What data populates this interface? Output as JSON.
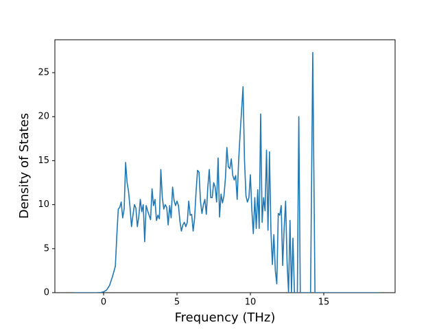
{
  "chart_data": {
    "type": "line",
    "xlabel": "Frequency (THz)",
    "ylabel": "Density of States",
    "xlim": [
      -3.32,
      19.86
    ],
    "ylim": [
      0,
      28.74
    ],
    "xticks": [
      0,
      5,
      10,
      15
    ],
    "yticks": [
      0,
      5,
      10,
      15,
      20,
      25
    ],
    "color": "#1f77b4",
    "x": [
      -2,
      -1.5,
      -1,
      -0.5,
      -0.2,
      0,
      0.2,
      0.4,
      0.6,
      0.8,
      0.9,
      1.0,
      1.1,
      1.2,
      1.3,
      1.4,
      1.5,
      1.6,
      1.7,
      1.8,
      1.9,
      2.0,
      2.1,
      2.2,
      2.3,
      2.4,
      2.5,
      2.6,
      2.7,
      2.8,
      2.9,
      3.0,
      3.1,
      3.2,
      3.3,
      3.4,
      3.5,
      3.6,
      3.7,
      3.8,
      3.9,
      4.0,
      4.1,
      4.2,
      4.3,
      4.4,
      4.5,
      4.6,
      4.7,
      4.8,
      4.9,
      5.0,
      5.1,
      5.2,
      5.3,
      5.4,
      5.5,
      5.6,
      5.7,
      5.8,
      5.9,
      6.0,
      6.1,
      6.2,
      6.3,
      6.4,
      6.5,
      6.6,
      6.7,
      6.8,
      6.9,
      7.0,
      7.1,
      7.2,
      7.3,
      7.4,
      7.5,
      7.6,
      7.7,
      7.8,
      7.9,
      8.0,
      8.1,
      8.2,
      8.3,
      8.4,
      8.5,
      8.6,
      8.7,
      8.8,
      8.9,
      9.0,
      9.1,
      9.2,
      9.3,
      9.5,
      9.6,
      9.7,
      9.8,
      9.9,
      10.0,
      10.1,
      10.2,
      10.3,
      10.4,
      10.5,
      10.6,
      10.7,
      10.8,
      10.9,
      11.0,
      11.1,
      11.2,
      11.3,
      11.4,
      11.5,
      11.6,
      11.7,
      11.8,
      11.9,
      12.0,
      12.1,
      12.2,
      12.3,
      12.4,
      12.5,
      12.6,
      12.7,
      12.8,
      12.9,
      13.0,
      13.2,
      13.3,
      13.4,
      14.1,
      14.25,
      14.4,
      18.8
    ],
    "values": [
      0,
      0,
      0,
      0,
      0.02,
      0.1,
      0.3,
      0.8,
      1.8,
      3.0,
      6.5,
      9.5,
      9.7,
      10.3,
      8.5,
      9.5,
      14.8,
      12.5,
      11.5,
      9.7,
      7.5,
      8.8,
      10.0,
      9.6,
      7.5,
      8.7,
      10.6,
      9.2,
      10.0,
      5.8,
      9.9,
      9.3,
      8.8,
      8.3,
      11.8,
      9.9,
      10.6,
      8.2,
      8.8,
      8.4,
      14.0,
      10.8,
      9.5,
      10.0,
      9.7,
      7.7,
      9.9,
      8.5,
      12.0,
      10.5,
      9.9,
      10.4,
      9.9,
      8.1,
      7.0,
      7.7,
      8.0,
      7.5,
      8.0,
      10.4,
      8.8,
      8.9,
      7.0,
      8.5,
      11.5,
      13.9,
      13.7,
      10.4,
      9.0,
      10.0,
      10.6,
      8.9,
      12.0,
      14.0,
      10.8,
      10.8,
      12.5,
      12.0,
      10.3,
      15.3,
      8.6,
      11.2,
      10.2,
      11.0,
      13.0,
      16.5,
      14.3,
      14.1,
      15.2,
      13.3,
      12.8,
      13.3,
      10.6,
      15.0,
      18.0,
      23.4,
      15.0,
      11.0,
      10.3,
      10.8,
      13.4,
      9.4,
      6.7,
      10.8,
      7.3,
      11.7,
      7.3,
      20.3,
      8.0,
      10.8,
      9.3,
      16.2,
      7.1,
      16.0,
      7.0,
      3.2,
      6.6,
      2.5,
      1.0,
      9.0,
      8.8,
      9.9,
      3.1,
      7.3,
      10.4,
      3.5,
      0,
      8.2,
      0,
      6.2,
      0,
      0,
      20.0,
      0,
      0,
      27.3,
      0,
      0
    ]
  }
}
